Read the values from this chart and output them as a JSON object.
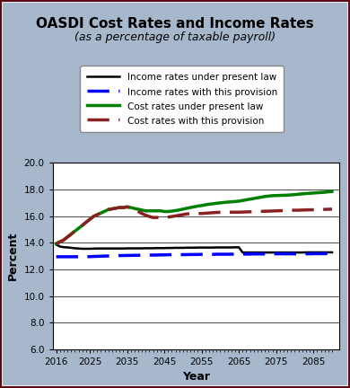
{
  "title": "OASDI Cost Rates and Income Rates",
  "subtitle": "(as a percentage of taxable payroll)",
  "xlabel": "Year",
  "ylabel": "Percent",
  "xlim": [
    2015,
    2092
  ],
  "ylim": [
    6.0,
    20.0
  ],
  "yticks": [
    6.0,
    8.0,
    10.0,
    12.0,
    14.0,
    16.0,
    18.0,
    20.0
  ],
  "xticks": [
    2016,
    2025,
    2035,
    2045,
    2055,
    2065,
    2075,
    2085
  ],
  "background_color": "#a8b8cc",
  "plot_bg_color": "#ffffff",
  "border_color": "#6b0a1a",
  "legend_labels": [
    "Income rates under present law",
    "Income rates with this provision",
    "Cost rates under present law",
    "Cost rates with this provision"
  ],
  "years": [
    2016,
    2017,
    2018,
    2019,
    2020,
    2021,
    2022,
    2023,
    2024,
    2025,
    2026,
    2027,
    2028,
    2029,
    2030,
    2031,
    2032,
    2033,
    2034,
    2035,
    2036,
    2037,
    2038,
    2039,
    2040,
    2041,
    2042,
    2043,
    2044,
    2045,
    2046,
    2047,
    2048,
    2049,
    2050,
    2051,
    2052,
    2053,
    2054,
    2055,
    2056,
    2057,
    2058,
    2059,
    2060,
    2061,
    2062,
    2063,
    2064,
    2065,
    2066,
    2067,
    2068,
    2069,
    2070,
    2071,
    2072,
    2073,
    2074,
    2075,
    2076,
    2077,
    2078,
    2079,
    2080,
    2081,
    2082,
    2083,
    2084,
    2085,
    2086,
    2087,
    2088,
    2089,
    2090
  ],
  "income_present_law": [
    13.87,
    13.72,
    13.67,
    13.65,
    13.62,
    13.59,
    13.57,
    13.55,
    13.55,
    13.55,
    13.56,
    13.57,
    13.57,
    13.57,
    13.57,
    13.57,
    13.57,
    13.57,
    13.57,
    13.58,
    13.58,
    13.58,
    13.58,
    13.58,
    13.59,
    13.59,
    13.59,
    13.6,
    13.6,
    13.6,
    13.61,
    13.61,
    13.62,
    13.62,
    13.62,
    13.63,
    13.63,
    13.63,
    13.64,
    13.64,
    13.64,
    13.64,
    13.64,
    13.65,
    13.65,
    13.65,
    13.65,
    13.65,
    13.66,
    13.66,
    13.27,
    13.27,
    13.27,
    13.27,
    13.27,
    13.27,
    13.27,
    13.27,
    13.27,
    13.27,
    13.27,
    13.27,
    13.27,
    13.27,
    13.27,
    13.27,
    13.27,
    13.28,
    13.28,
    13.28,
    13.28,
    13.28,
    13.28,
    13.28,
    13.28
  ],
  "income_provision": [
    12.95,
    12.95,
    12.95,
    12.95,
    12.95,
    12.95,
    12.95,
    12.95,
    12.95,
    12.96,
    12.97,
    12.98,
    12.99,
    13.0,
    13.01,
    13.02,
    13.03,
    13.04,
    13.04,
    13.05,
    13.05,
    13.06,
    13.06,
    13.07,
    13.07,
    13.07,
    13.08,
    13.08,
    13.09,
    13.09,
    13.1,
    13.1,
    13.1,
    13.11,
    13.11,
    13.11,
    13.12,
    13.12,
    13.12,
    13.13,
    13.13,
    13.13,
    13.13,
    13.14,
    13.14,
    13.14,
    13.14,
    13.14,
    13.15,
    13.15,
    13.15,
    13.15,
    13.15,
    13.16,
    13.16,
    13.16,
    13.16,
    13.16,
    13.16,
    13.17,
    13.17,
    13.17,
    13.17,
    13.17,
    13.17,
    13.17,
    13.17,
    13.17,
    13.17,
    13.18,
    13.18,
    13.18,
    13.18,
    13.18,
    13.18
  ],
  "cost_present_law": [
    13.93,
    14.07,
    14.21,
    14.43,
    14.65,
    14.87,
    15.09,
    15.31,
    15.54,
    15.76,
    15.98,
    16.11,
    16.24,
    16.37,
    16.5,
    16.55,
    16.6,
    16.65,
    16.65,
    16.7,
    16.65,
    16.58,
    16.52,
    16.46,
    16.4,
    16.4,
    16.4,
    16.4,
    16.4,
    16.35,
    16.35,
    16.38,
    16.42,
    16.47,
    16.53,
    16.59,
    16.65,
    16.7,
    16.76,
    16.8,
    16.85,
    16.9,
    16.93,
    16.97,
    17.0,
    17.03,
    17.06,
    17.08,
    17.1,
    17.13,
    17.18,
    17.23,
    17.28,
    17.33,
    17.38,
    17.43,
    17.48,
    17.51,
    17.54,
    17.55,
    17.56,
    17.57,
    17.58,
    17.6,
    17.62,
    17.65,
    17.68,
    17.7,
    17.72,
    17.74,
    17.76,
    17.78,
    17.8,
    17.83,
    17.86
  ],
  "cost_provision": [
    13.93,
    14.07,
    14.21,
    14.43,
    14.65,
    14.87,
    15.09,
    15.31,
    15.54,
    15.76,
    15.98,
    16.11,
    16.24,
    16.37,
    16.5,
    16.55,
    16.6,
    16.65,
    16.65,
    16.7,
    16.65,
    16.5,
    16.35,
    16.2,
    16.07,
    15.97,
    15.9,
    15.9,
    15.9,
    15.9,
    15.93,
    15.97,
    16.02,
    16.07,
    16.12,
    16.17,
    16.18,
    16.19,
    16.2,
    16.2,
    16.22,
    16.24,
    16.26,
    16.28,
    16.29,
    16.3,
    16.3,
    16.3,
    16.3,
    16.3,
    16.31,
    16.32,
    16.33,
    16.34,
    16.35,
    16.36,
    16.37,
    16.38,
    16.39,
    16.4,
    16.41,
    16.42,
    16.43,
    16.44,
    16.45,
    16.45,
    16.46,
    16.47,
    16.48,
    16.48,
    16.49,
    16.5,
    16.51,
    16.52,
    16.53
  ]
}
